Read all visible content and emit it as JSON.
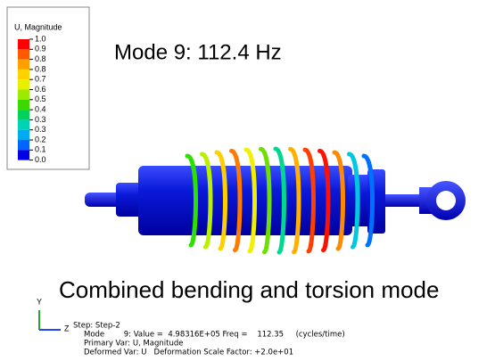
{
  "legend": {
    "title": "U, Magnitude",
    "labels": [
      "1.0",
      "0.9",
      "0.8",
      "0.8",
      "0.7",
      "0.6",
      "0.5",
      "0.4",
      "0.3",
      "0.3",
      "0.2",
      "0.1",
      "0.0"
    ]
  },
  "mode_title": "Mode 9: 112.4 Hz",
  "caption": "Combined bending and torsion mode",
  "triad": {
    "y": "Y",
    "z": "Z"
  },
  "info": {
    "lines": [
      "Step: Step-2",
      "Mode        9: Value =  4.98316E+05 Freq =    112.35     (cycles/time)",
      "Primary Var: U, Magnitude",
      "Deformed Var: U   Deformation Scale Factor: +2.0e+01"
    ]
  }
}
